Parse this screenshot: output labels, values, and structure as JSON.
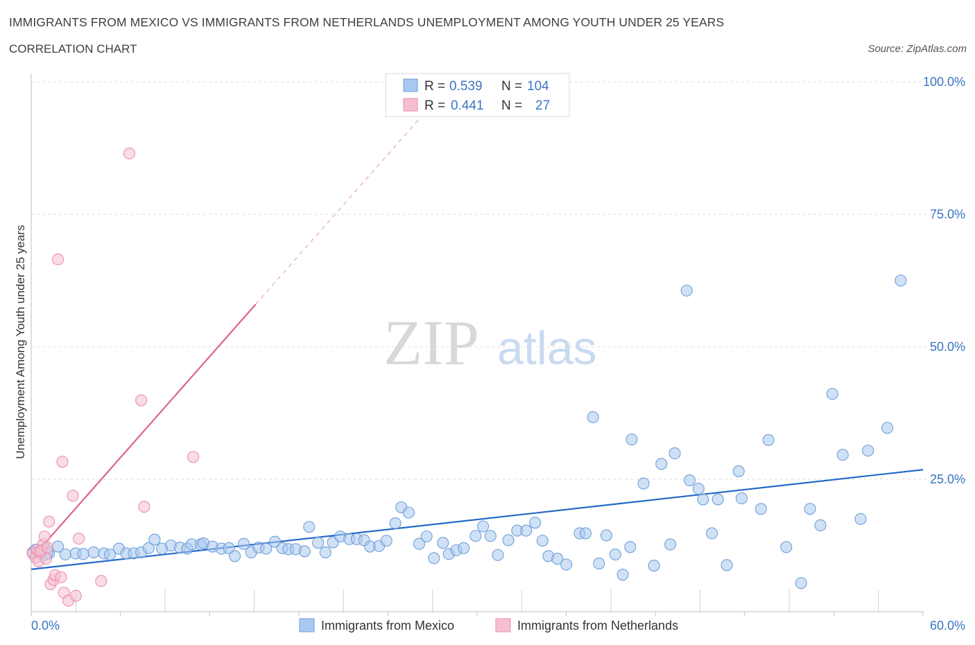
{
  "header": {
    "title": "IMMIGRANTS FROM MEXICO VS IMMIGRANTS FROM NETHERLANDS UNEMPLOYMENT AMONG YOUTH UNDER 25 YEARS",
    "subtitle": "CORRELATION CHART",
    "source": "Source: ZipAtlas.com"
  },
  "watermark": {
    "zip": "ZIP",
    "atlas": "atlas"
  },
  "colors": {
    "mexico_fill": "#a9c8ef",
    "mexico_stroke": "#6d9fd9",
    "mexico_line": "#2468c8",
    "netherlands_fill": "#f6bfd0",
    "netherlands_stroke": "#e98fab",
    "netherlands_line": "#e0628d",
    "axis_text": "#3b74c4",
    "grid": "#dcdcdc"
  },
  "legend": {
    "rows": [
      {
        "r_label": "R =",
        "r_value": "0.539",
        "n_label": "N =",
        "n_value": "104"
      },
      {
        "r_label": "R =",
        "r_value": "0.441",
        "n_label": "N =",
        "n_value": "27"
      }
    ]
  },
  "chart_data": {
    "type": "scatter",
    "title": "IMMIGRANTS FROM MEXICO VS IMMIGRANTS FROM NETHERLANDS UNEMPLOYMENT AMONG YOUTH UNDER 25 YEARS",
    "subtitle": "CORRELATION CHART",
    "xlabel": "",
    "ylabel": "Unemployment Among Youth under 25 years",
    "xlim": [
      0,
      60
    ],
    "ylim": [
      0,
      100
    ],
    "x_tick_labels": [
      "0.0%",
      "60.0%"
    ],
    "y_tick_labels": [
      "25.0%",
      "50.0%",
      "75.0%",
      "100.0%"
    ],
    "y_ticks": [
      25,
      50,
      75,
      100
    ],
    "grid": true,
    "legend_position": "top-center",
    "series": [
      {
        "name": "Immigrants from Mexico",
        "r": 0.539,
        "n": 104,
        "trend": {
          "x": [
            0,
            60
          ],
          "y": [
            8.0,
            26.8
          ]
        },
        "points": [
          [
            0.1,
            11.2
          ],
          [
            0.3,
            11.7
          ],
          [
            0.6,
            11.0
          ],
          [
            1.2,
            11.0
          ],
          [
            1.8,
            12.3
          ],
          [
            2.3,
            10.8
          ],
          [
            3.0,
            11.0
          ],
          [
            3.5,
            10.9
          ],
          [
            4.2,
            11.2
          ],
          [
            4.9,
            11.0
          ],
          [
            5.3,
            10.8
          ],
          [
            5.9,
            11.9
          ],
          [
            6.4,
            11.0
          ],
          [
            6.9,
            11.0
          ],
          [
            7.4,
            11.2
          ],
          [
            7.9,
            12.0
          ],
          [
            8.3,
            13.6
          ],
          [
            8.8,
            11.9
          ],
          [
            9.4,
            12.5
          ],
          [
            10.0,
            12.1
          ],
          [
            10.5,
            11.9
          ],
          [
            10.8,
            12.7
          ],
          [
            11.4,
            12.7
          ],
          [
            11.6,
            12.9
          ],
          [
            12.2,
            12.3
          ],
          [
            12.8,
            11.9
          ],
          [
            13.3,
            12.0
          ],
          [
            13.7,
            10.5
          ],
          [
            14.3,
            12.8
          ],
          [
            14.8,
            11.2
          ],
          [
            15.3,
            12.1
          ],
          [
            15.8,
            11.9
          ],
          [
            16.4,
            13.2
          ],
          [
            16.9,
            12.0
          ],
          [
            17.3,
            11.8
          ],
          [
            17.8,
            11.8
          ],
          [
            18.4,
            11.4
          ],
          [
            18.7,
            16.0
          ],
          [
            19.3,
            13.0
          ],
          [
            19.8,
            11.2
          ],
          [
            20.3,
            13.1
          ],
          [
            20.8,
            14.2
          ],
          [
            21.4,
            13.7
          ],
          [
            21.9,
            13.7
          ],
          [
            22.4,
            13.5
          ],
          [
            22.8,
            12.3
          ],
          [
            23.4,
            12.4
          ],
          [
            23.9,
            13.4
          ],
          [
            24.5,
            16.7
          ],
          [
            24.9,
            19.7
          ],
          [
            25.4,
            18.7
          ],
          [
            26.1,
            12.8
          ],
          [
            26.6,
            14.2
          ],
          [
            27.1,
            10.1
          ],
          [
            27.7,
            13.0
          ],
          [
            28.1,
            10.9
          ],
          [
            28.6,
            11.6
          ],
          [
            29.1,
            12.0
          ],
          [
            29.9,
            14.3
          ],
          [
            30.4,
            16.1
          ],
          [
            30.9,
            14.3
          ],
          [
            31.4,
            10.7
          ],
          [
            32.1,
            13.5
          ],
          [
            32.7,
            15.3
          ],
          [
            33.3,
            15.3
          ],
          [
            33.9,
            16.8
          ],
          [
            34.4,
            13.4
          ],
          [
            34.8,
            10.5
          ],
          [
            35.4,
            10.0
          ],
          [
            36.0,
            8.9
          ],
          [
            36.9,
            14.8
          ],
          [
            37.3,
            14.8
          ],
          [
            37.8,
            36.7
          ],
          [
            38.2,
            9.1
          ],
          [
            38.7,
            14.4
          ],
          [
            39.3,
            10.8
          ],
          [
            39.8,
            7.0
          ],
          [
            40.3,
            12.2
          ],
          [
            40.4,
            32.5
          ],
          [
            41.2,
            24.2
          ],
          [
            41.9,
            8.7
          ],
          [
            42.4,
            27.9
          ],
          [
            43.0,
            12.7
          ],
          [
            43.3,
            29.9
          ],
          [
            44.1,
            60.6
          ],
          [
            44.3,
            24.8
          ],
          [
            44.9,
            23.2
          ],
          [
            45.2,
            21.2
          ],
          [
            45.8,
            14.8
          ],
          [
            46.2,
            21.2
          ],
          [
            46.8,
            8.8
          ],
          [
            47.6,
            26.5
          ],
          [
            47.8,
            21.4
          ],
          [
            49.1,
            19.4
          ],
          [
            49.6,
            32.4
          ],
          [
            50.8,
            12.2
          ],
          [
            51.8,
            5.4
          ],
          [
            52.4,
            19.4
          ],
          [
            53.1,
            16.3
          ],
          [
            53.9,
            41.1
          ],
          [
            54.6,
            29.6
          ],
          [
            55.8,
            17.5
          ],
          [
            56.3,
            30.4
          ],
          [
            57.6,
            34.7
          ],
          [
            58.5,
            62.5
          ]
        ]
      },
      {
        "name": "Immigrants from Netherlands",
        "r": 0.441,
        "n": 27,
        "trend": {
          "x": [
            0,
            15.1
          ],
          "y": [
            10.0,
            58.0
          ]
        },
        "trend_dashed_extension": {
          "x": [
            15.1,
            26.3
          ],
          "y": [
            58.0,
            93.6
          ]
        },
        "points": [
          [
            0.1,
            11.0
          ],
          [
            0.3,
            10.2
          ],
          [
            0.4,
            11.7
          ],
          [
            0.5,
            9.5
          ],
          [
            0.7,
            11.6
          ],
          [
            0.8,
            12.7
          ],
          [
            0.9,
            14.2
          ],
          [
            1.0,
            10.0
          ],
          [
            1.2,
            17.0
          ],
          [
            1.3,
            5.2
          ],
          [
            1.5,
            6.0
          ],
          [
            1.6,
            6.9
          ],
          [
            1.8,
            66.5
          ],
          [
            2.0,
            6.5
          ],
          [
            2.1,
            28.3
          ],
          [
            2.2,
            3.6
          ],
          [
            2.5,
            2.1
          ],
          [
            2.8,
            21.9
          ],
          [
            3.0,
            3.0
          ],
          [
            3.2,
            13.8
          ],
          [
            4.7,
            5.8
          ],
          [
            6.6,
            86.5
          ],
          [
            7.4,
            39.9
          ],
          [
            7.6,
            19.8
          ],
          [
            10.9,
            29.2
          ],
          [
            0.6,
            11.4
          ],
          [
            1.1,
            12.1
          ]
        ]
      }
    ]
  },
  "bottom_legend": {
    "mexico_label": "Immigrants from Mexico",
    "netherlands_label": "Immigrants from Netherlands"
  }
}
